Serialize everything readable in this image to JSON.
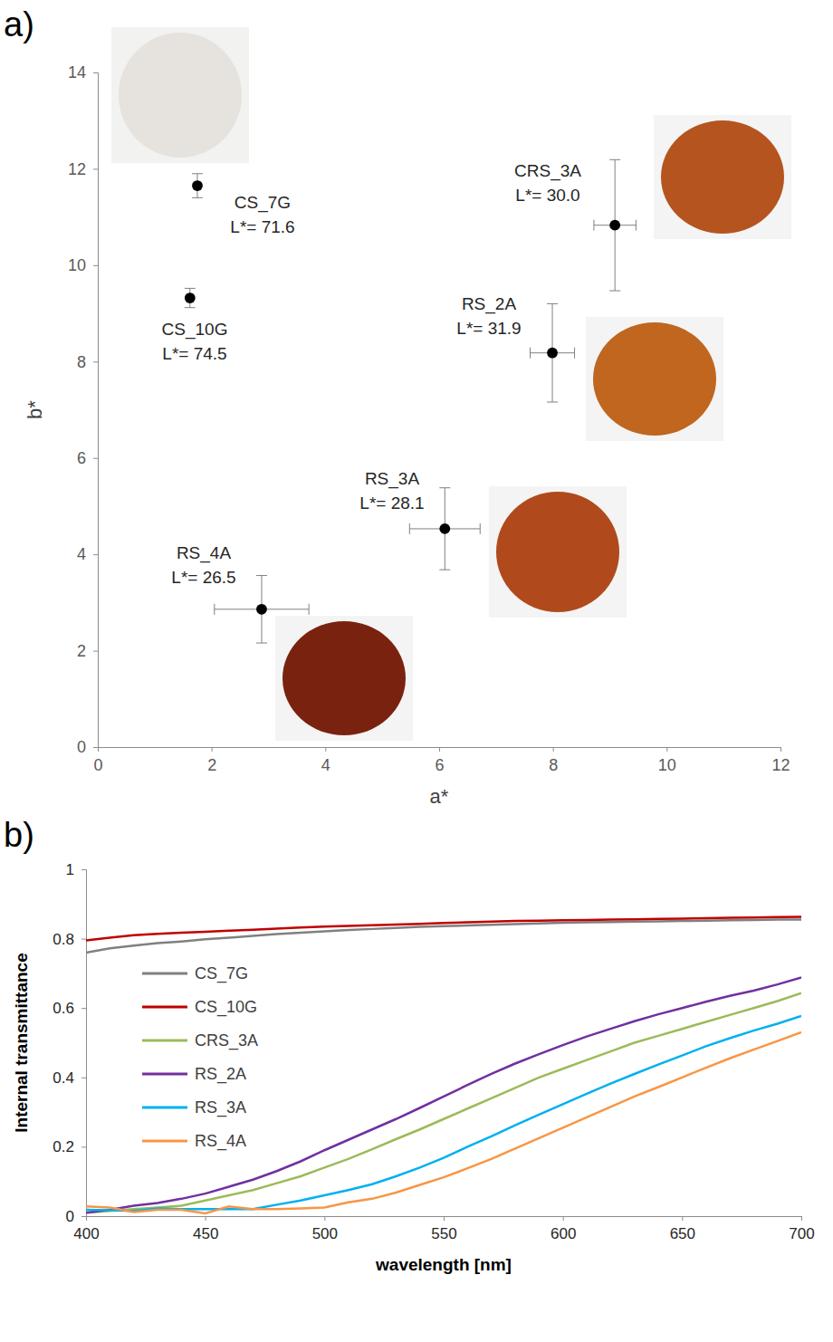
{
  "chart_data": [
    {
      "type": "scatter",
      "panel_label": "a)",
      "x_label": "a*",
      "y_label": "b*",
      "xlim": [
        0,
        12
      ],
      "ylim": [
        0,
        14
      ],
      "xticks": [
        0,
        2,
        4,
        6,
        8,
        10,
        12
      ],
      "yticks": [
        0,
        2,
        4,
        6,
        8,
        10,
        12,
        14
      ],
      "color": "#000000",
      "marker": "circle",
      "labels": [
        "CS_7G",
        "CS_10G",
        "CRS_3A",
        "RS_2A",
        "RS_3A",
        "RS_4A"
      ],
      "annotations": [
        "L*= 71.6",
        "L*= 74.5",
        "L*= 30.0",
        "L*= 31.9",
        "L*= 28.1",
        "L*= 26.5"
      ],
      "x": [
        1.75,
        1.62,
        9.09,
        7.99,
        6.1,
        2.88
      ],
      "values": [
        11.65,
        9.32,
        10.83,
        8.18,
        4.53,
        2.86
      ],
      "x_errors": [
        0,
        0,
        0.37,
        0.39,
        0.62,
        0.83
      ],
      "y_errors": [
        0.25,
        0.2,
        1.36,
        1.02,
        0.85,
        0.7
      ]
    },
    {
      "type": "line",
      "panel_label": "b)",
      "x_label": "wavelength [nm]",
      "y_label": "Internal transmittance",
      "xlim": [
        400,
        700
      ],
      "ylim": [
        0,
        1
      ],
      "xticks": [
        400,
        450,
        500,
        550,
        600,
        650,
        700
      ],
      "yticks": [
        0,
        0.2,
        0.4,
        0.6,
        0.8,
        1
      ],
      "legend": "upper left",
      "x": [
        400,
        410,
        420,
        430,
        440,
        450,
        460,
        470,
        480,
        490,
        500,
        510,
        520,
        530,
        540,
        550,
        560,
        570,
        580,
        590,
        600,
        610,
        620,
        630,
        640,
        650,
        660,
        670,
        680,
        690,
        700
      ],
      "series": [
        {
          "name": "CS_7G",
          "color": "#808080",
          "values": [
            0.76,
            0.772,
            0.78,
            0.787,
            0.792,
            0.798,
            0.803,
            0.808,
            0.813,
            0.817,
            0.821,
            0.825,
            0.828,
            0.831,
            0.834,
            0.836,
            0.838,
            0.84,
            0.842,
            0.844,
            0.846,
            0.847,
            0.848,
            0.849,
            0.85,
            0.851,
            0.852,
            0.853,
            0.854,
            0.855,
            0.855
          ]
        },
        {
          "name": "CS_10G",
          "color": "#c00000",
          "values": [
            0.795,
            0.803,
            0.81,
            0.814,
            0.817,
            0.82,
            0.823,
            0.826,
            0.829,
            0.832,
            0.835,
            0.837,
            0.839,
            0.841,
            0.843,
            0.845,
            0.847,
            0.849,
            0.851,
            0.852,
            0.853,
            0.854,
            0.855,
            0.856,
            0.857,
            0.858,
            0.859,
            0.86,
            0.861,
            0.862,
            0.863
          ]
        },
        {
          "name": "CRS_3A",
          "color": "#9bbb59",
          "values": [
            0.01,
            0.015,
            0.02,
            0.025,
            0.03,
            0.045,
            0.06,
            0.075,
            0.095,
            0.115,
            0.14,
            0.165,
            0.193,
            0.222,
            0.25,
            0.28,
            0.31,
            0.34,
            0.37,
            0.4,
            0.425,
            0.45,
            0.475,
            0.5,
            0.52,
            0.54,
            0.56,
            0.58,
            0.6,
            0.62,
            0.643
          ]
        },
        {
          "name": "RS_2A",
          "color": "#7030a0",
          "values": [
            0.01,
            0.018,
            0.03,
            0.038,
            0.05,
            0.065,
            0.085,
            0.105,
            0.13,
            0.158,
            0.19,
            0.22,
            0.25,
            0.28,
            0.312,
            0.345,
            0.378,
            0.41,
            0.44,
            0.467,
            0.493,
            0.518,
            0.54,
            0.562,
            0.582,
            0.6,
            0.618,
            0.635,
            0.65,
            0.668,
            0.688
          ]
        },
        {
          "name": "RS_3A",
          "color": "#00b0f0",
          "values": [
            0.018,
            0.017,
            0.015,
            0.022,
            0.02,
            0.02,
            0.02,
            0.02,
            0.033,
            0.045,
            0.06,
            0.075,
            0.092,
            0.115,
            0.14,
            0.168,
            0.2,
            0.23,
            0.262,
            0.293,
            0.323,
            0.353,
            0.382,
            0.41,
            0.437,
            0.463,
            0.49,
            0.513,
            0.535,
            0.555,
            0.577
          ]
        },
        {
          "name": "RS_4A",
          "color": "#f79646",
          "values": [
            0.028,
            0.025,
            0.012,
            0.018,
            0.018,
            0.008,
            0.028,
            0.02,
            0.02,
            0.022,
            0.025,
            0.04,
            0.05,
            0.068,
            0.09,
            0.112,
            0.138,
            0.165,
            0.195,
            0.225,
            0.255,
            0.285,
            0.315,
            0.345,
            0.372,
            0.4,
            0.428,
            0.455,
            0.48,
            0.505,
            0.53
          ]
        }
      ]
    }
  ]
}
